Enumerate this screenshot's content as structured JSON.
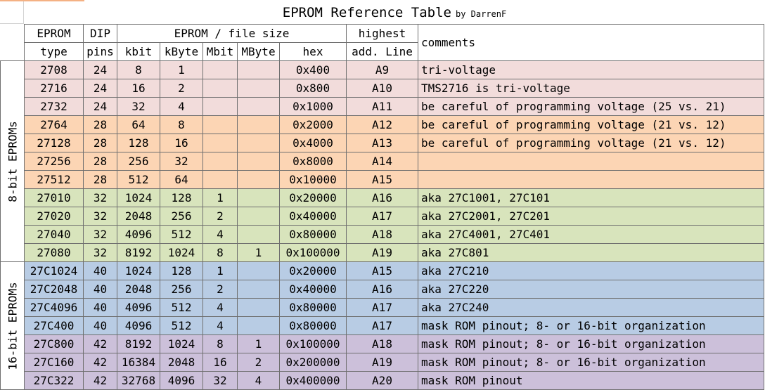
{
  "title": "EPROM Reference Table",
  "byline": "by DarrenF",
  "header": {
    "eprom": "EPROM",
    "type": "type",
    "dip": "DIP",
    "pins": "pins",
    "filesize": "EPROM / file size",
    "kbit": "kbit",
    "kbyte": "kByte",
    "mbit": "Mbit",
    "mbyte": "MByte",
    "hex": "hex",
    "highest": "highest",
    "addline": "add. Line",
    "comments": "comments"
  },
  "groups": {
    "g8": "8-bit EPROMs",
    "g16": "16-bit EPROMs"
  },
  "colors": {
    "pink": "#f2dcdb",
    "orange": "#fcd5b4",
    "green": "#d8e4bc",
    "blue": "#b8cce4",
    "purple": "#ccc0da"
  },
  "rows": [
    {
      "type": "2708",
      "pins": "24",
      "kbit": "8",
      "kbyte": "1",
      "mbit": "",
      "mbyte": "",
      "hex": "0x400",
      "line": "A9",
      "comment": "tri-voltage"
    },
    {
      "type": "2716",
      "pins": "24",
      "kbit": "16",
      "kbyte": "2",
      "mbit": "",
      "mbyte": "",
      "hex": "0x800",
      "line": "A10",
      "comment": "TMS2716 is tri-voltage"
    },
    {
      "type": "2732",
      "pins": "24",
      "kbit": "32",
      "kbyte": "4",
      "mbit": "",
      "mbyte": "",
      "hex": "0x1000",
      "line": "A11",
      "comment": "be careful of programming voltage (25 vs. 21)"
    },
    {
      "type": "2764",
      "pins": "28",
      "kbit": "64",
      "kbyte": "8",
      "mbit": "",
      "mbyte": "",
      "hex": "0x2000",
      "line": "A12",
      "comment": "be careful of programming voltage (21 vs. 12)"
    },
    {
      "type": "27128",
      "pins": "28",
      "kbit": "128",
      "kbyte": "16",
      "mbit": "",
      "mbyte": "",
      "hex": "0x4000",
      "line": "A13",
      "comment": "be careful of programming voltage (21 vs. 12)"
    },
    {
      "type": "27256",
      "pins": "28",
      "kbit": "256",
      "kbyte": "32",
      "mbit": "",
      "mbyte": "",
      "hex": "0x8000",
      "line": "A14",
      "comment": ""
    },
    {
      "type": "27512",
      "pins": "28",
      "kbit": "512",
      "kbyte": "64",
      "mbit": "",
      "mbyte": "",
      "hex": "0x10000",
      "line": "A15",
      "comment": ""
    },
    {
      "type": "27010",
      "pins": "32",
      "kbit": "1024",
      "kbyte": "128",
      "mbit": "1",
      "mbyte": "",
      "hex": "0x20000",
      "line": "A16",
      "comment": "aka 27C1001, 27C101"
    },
    {
      "type": "27020",
      "pins": "32",
      "kbit": "2048",
      "kbyte": "256",
      "mbit": "2",
      "mbyte": "",
      "hex": "0x40000",
      "line": "A17",
      "comment": "aka 27C2001, 27C201"
    },
    {
      "type": "27040",
      "pins": "32",
      "kbit": "4096",
      "kbyte": "512",
      "mbit": "4",
      "mbyte": "",
      "hex": "0x80000",
      "line": "A18",
      "comment": "aka 27C4001, 27C401"
    },
    {
      "type": "27080",
      "pins": "32",
      "kbit": "8192",
      "kbyte": "1024",
      "mbit": "8",
      "mbyte": "1",
      "hex": "0x100000",
      "line": "A19",
      "comment": "aka 27C801"
    },
    {
      "type": "27C1024",
      "pins": "40",
      "kbit": "1024",
      "kbyte": "128",
      "mbit": "1",
      "mbyte": "",
      "hex": "0x20000",
      "line": "A15",
      "comment": "aka 27C210"
    },
    {
      "type": "27C2048",
      "pins": "40",
      "kbit": "2048",
      "kbyte": "256",
      "mbit": "2",
      "mbyte": "",
      "hex": "0x40000",
      "line": "A16",
      "comment": "aka 27C220"
    },
    {
      "type": "27C4096",
      "pins": "40",
      "kbit": "4096",
      "kbyte": "512",
      "mbit": "4",
      "mbyte": "",
      "hex": "0x80000",
      "line": "A17",
      "comment": "aka 27C240"
    },
    {
      "type": "27C400",
      "pins": "40",
      "kbit": "4096",
      "kbyte": "512",
      "mbit": "4",
      "mbyte": "",
      "hex": "0x80000",
      "line": "A17",
      "comment": "mask ROM pinout; 8- or 16-bit organization"
    },
    {
      "type": "27C800",
      "pins": "42",
      "kbit": "8192",
      "kbyte": "1024",
      "mbit": "8",
      "mbyte": "1",
      "hex": "0x100000",
      "line": "A18",
      "comment": "mask ROM pinout; 8- or 16-bit organization"
    },
    {
      "type": "27C160",
      "pins": "42",
      "kbit": "16384",
      "kbyte": "2048",
      "mbit": "16",
      "mbyte": "2",
      "hex": "0x200000",
      "line": "A19",
      "comment": "mask ROM pinout; 8- or 16-bit organization"
    },
    {
      "type": "27C322",
      "pins": "42",
      "kbit": "32768",
      "kbyte": "4096",
      "mbit": "32",
      "mbyte": "4",
      "hex": "0x400000",
      "line": "A20",
      "comment": "mask ROM pinout"
    }
  ]
}
